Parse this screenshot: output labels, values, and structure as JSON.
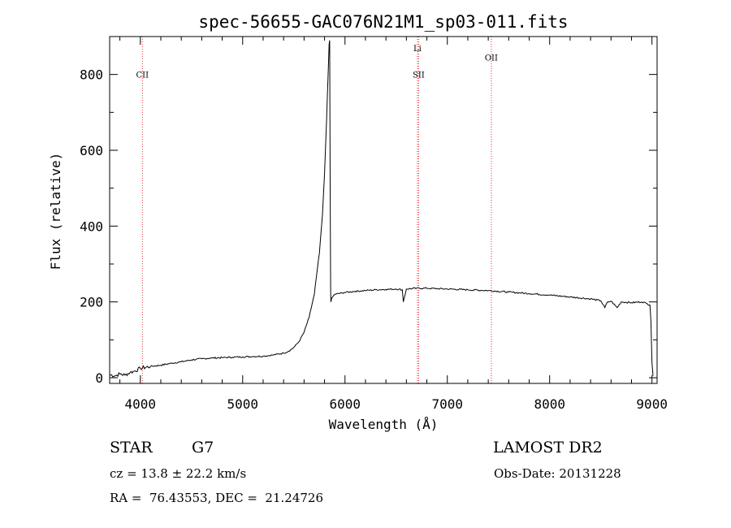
{
  "info": {
    "object_class": "STAR",
    "subclass": "G7",
    "survey": "LAMOST DR2",
    "redshift": "cz = 13.8 ± 22.2 km/s",
    "obs_date": "Obs-Date: 20131228",
    "coords": "RA =  76.43553, DEC =  21.24726"
  },
  "chart_data": {
    "type": "line",
    "title": "spec-56655-GAC076N21M1_sp03-011.fits",
    "xlabel": "Wavelength (Å)",
    "ylabel": "Flux (relative)",
    "xlim": [
      3700,
      9050
    ],
    "ylim": [
      -15,
      900
    ],
    "xticks": [
      4000,
      5000,
      6000,
      7000,
      8000,
      9000
    ],
    "yticks": [
      0,
      200,
      400,
      600,
      800
    ],
    "grid": false,
    "line_color": "#000000",
    "marker_color": "#e0303a",
    "series": [
      {
        "x": [
          3700,
          3750,
          3800,
          3850,
          3900,
          3950,
          4000,
          4100,
          4200,
          4300,
          4400,
          4500,
          4600,
          4700,
          4800,
          4900,
          5000,
          5100,
          5200,
          5300,
          5400,
          5450,
          5500,
          5550,
          5600,
          5650,
          5700,
          5750,
          5780,
          5800,
          5820,
          5835,
          5845,
          5850,
          5855,
          5860,
          5862,
          5870,
          5900,
          6000,
          6100,
          6200,
          6300,
          6400,
          6500,
          6560,
          6570,
          6600,
          6700,
          6800,
          6900,
          7000,
          7200,
          7400,
          7600,
          7800,
          8000,
          8200,
          8400,
          8500,
          8540,
          8560,
          8600,
          8660,
          8700,
          8800,
          8900,
          8950,
          8980,
          8990,
          9000,
          9010
        ],
        "y": [
          8,
          5,
          10,
          7,
          14,
          18,
          25,
          30,
          33,
          38,
          42,
          47,
          50,
          52,
          53,
          54,
          55,
          56,
          57,
          60,
          65,
          70,
          80,
          95,
          120,
          160,
          220,
          330,
          430,
          540,
          680,
          800,
          880,
          890,
          500,
          230,
          200,
          210,
          220,
          225,
          228,
          230,
          232,
          233,
          234,
          232,
          200,
          234,
          236,
          236,
          235,
          234,
          232,
          230,
          226,
          222,
          218,
          213,
          208,
          203,
          185,
          198,
          202,
          185,
          200,
          198,
          200,
          196,
          192,
          150,
          40,
          5
        ]
      }
    ],
    "lines": [
      {
        "label": "CII",
        "x": 4020,
        "label_y": 800
      },
      {
        "label": "Li",
        "x": 6708,
        "label_y": 870
      },
      {
        "label": "SII",
        "x": 6720,
        "label_y": 800
      },
      {
        "label": "OII",
        "x": 7430,
        "label_y": 845
      }
    ]
  }
}
